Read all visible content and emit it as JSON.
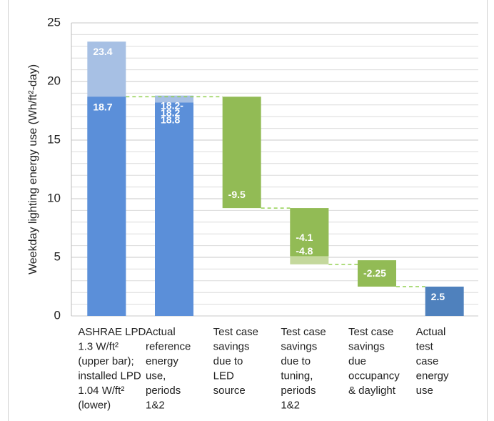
{
  "chart_data": {
    "type": "waterfall",
    "ylabel": "Weekday lighting energy use (Wh/ft²-day)",
    "categories": [
      "ASHRAE LPD\n1.3 W/ft²\n(upper bar);\ninstalled LPD\n1.04 W/ft²\n(lower)",
      "Actual\nreference\nenergy\nuse,\nperiods\n1&2",
      "Test case\nsavings\ndue to\nLED\nsource",
      "Test case\nsavings\ndue to\ntuning,\nperiods\n1&2",
      "Test case\nsavings\ndue\noccupancy\n& daylight",
      "Actual\ntest\ncase\nenergy\nuse"
    ],
    "segments": [
      {
        "category": 0,
        "start": 0,
        "value": 23.4,
        "color": "#a7c0e4"
      },
      {
        "category": 0,
        "start": 0,
        "value": 18.7,
        "color": "#5b8fd9"
      },
      {
        "category": 1,
        "start": 0,
        "value": 18.8,
        "color": "#a7c0e4",
        "value_label": "18.2-\n18.8"
      },
      {
        "category": 1,
        "start": 0,
        "value": 18.2,
        "color": "#5b8fd9"
      },
      {
        "category": 2,
        "start": 18.7,
        "value": -9.5,
        "color": "#92bb55"
      },
      {
        "category": 3,
        "start": 9.2,
        "value": -4.8,
        "color": "#c4d89c"
      },
      {
        "category": 3,
        "start": 9.2,
        "value": -4.1,
        "color": "#92bb55"
      },
      {
        "category": 4,
        "start": 4.75,
        "value": -2.25,
        "color": "#92bb55"
      },
      {
        "category": 5,
        "start": 0,
        "value": 2.5,
        "color": "#4f81bd"
      }
    ],
    "connector_color": "#92d050",
    "ylim": [
      0,
      25
    ],
    "yticks": [
      0,
      5,
      10,
      15,
      20,
      25
    ],
    "grid": true,
    "minor_grid": true
  }
}
